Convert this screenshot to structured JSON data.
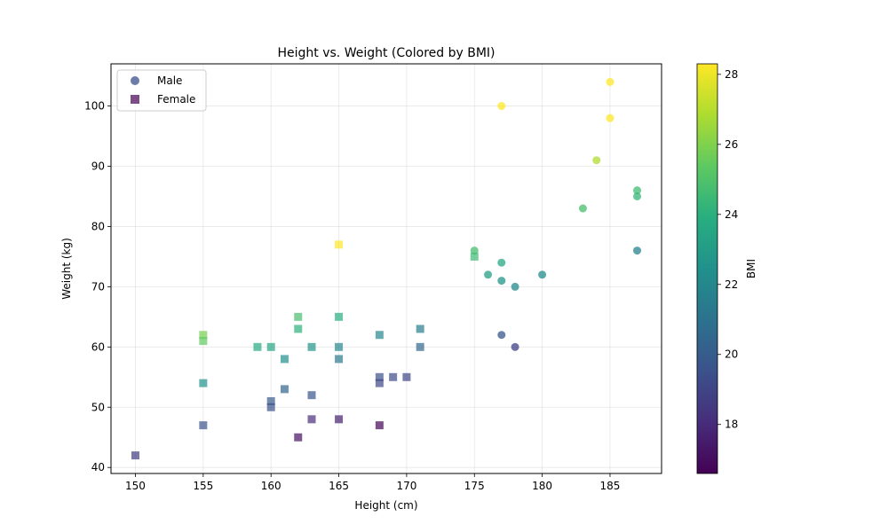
{
  "chart_data": {
    "type": "scatter",
    "title": "Height vs. Weight (Colored by BMI)",
    "xlabel": "Height (cm)",
    "ylabel": "Weight (kg)",
    "xlim": [
      148.2,
      188.8
    ],
    "ylim": [
      39.0,
      107.0
    ],
    "x_ticks": [
      150,
      155,
      160,
      165,
      170,
      175,
      180,
      185
    ],
    "y_ticks": [
      40,
      50,
      60,
      70,
      80,
      90,
      100
    ],
    "grid": true,
    "legend_position": "top-left",
    "colorbar": {
      "label": "BMI",
      "range": [
        16.6,
        28.3
      ],
      "ticks": [
        18,
        20,
        22,
        24,
        26,
        28
      ],
      "colormap": "viridis"
    },
    "series": [
      {
        "name": "Male",
        "marker": "circle",
        "points": [
          {
            "x": 177,
            "y": 100,
            "bmi": 31.9
          },
          {
            "x": 185,
            "y": 104,
            "bmi": 30.4
          },
          {
            "x": 185,
            "y": 98,
            "bmi": 28.6
          },
          {
            "x": 184,
            "y": 91,
            "bmi": 26.9
          },
          {
            "x": 183,
            "y": 83,
            "bmi": 24.8
          },
          {
            "x": 187,
            "y": 86,
            "bmi": 24.6
          },
          {
            "x": 187,
            "y": 85,
            "bmi": 24.3
          },
          {
            "x": 187,
            "y": 76,
            "bmi": 21.7
          },
          {
            "x": 175,
            "y": 76,
            "bmi": 24.8
          },
          {
            "x": 177,
            "y": 74,
            "bmi": 23.6
          },
          {
            "x": 176,
            "y": 72,
            "bmi": 23.2
          },
          {
            "x": 177,
            "y": 71,
            "bmi": 22.7
          },
          {
            "x": 178,
            "y": 70,
            "bmi": 22.1
          },
          {
            "x": 180,
            "y": 72,
            "bmi": 22.2
          },
          {
            "x": 177,
            "y": 62,
            "bmi": 19.8
          },
          {
            "x": 178,
            "y": 60,
            "bmi": 18.9
          }
        ]
      },
      {
        "name": "Female",
        "marker": "square",
        "points": [
          {
            "x": 165,
            "y": 77,
            "bmi": 28.3
          },
          {
            "x": 175,
            "y": 75,
            "bmi": 24.5
          },
          {
            "x": 162,
            "y": 65,
            "bmi": 24.8
          },
          {
            "x": 165,
            "y": 65,
            "bmi": 23.9
          },
          {
            "x": 162,
            "y": 63,
            "bmi": 24.0
          },
          {
            "x": 155,
            "y": 62,
            "bmi": 25.8
          },
          {
            "x": 155,
            "y": 61,
            "bmi": 25.4
          },
          {
            "x": 159,
            "y": 60,
            "bmi": 23.7
          },
          {
            "x": 160,
            "y": 60,
            "bmi": 23.4
          },
          {
            "x": 163,
            "y": 60,
            "bmi": 22.6
          },
          {
            "x": 165,
            "y": 60,
            "bmi": 22.0
          },
          {
            "x": 165,
            "y": 58,
            "bmi": 21.3
          },
          {
            "x": 161,
            "y": 58,
            "bmi": 22.4
          },
          {
            "x": 168,
            "y": 62,
            "bmi": 22.0
          },
          {
            "x": 171,
            "y": 63,
            "bmi": 21.5
          },
          {
            "x": 171,
            "y": 60,
            "bmi": 20.5
          },
          {
            "x": 155,
            "y": 54,
            "bmi": 22.5
          },
          {
            "x": 161,
            "y": 53,
            "bmi": 20.4
          },
          {
            "x": 163,
            "y": 52,
            "bmi": 19.6
          },
          {
            "x": 160,
            "y": 51,
            "bmi": 19.9
          },
          {
            "x": 160,
            "y": 50,
            "bmi": 19.5
          },
          {
            "x": 168,
            "y": 55,
            "bmi": 19.5
          },
          {
            "x": 168,
            "y": 54,
            "bmi": 19.1
          },
          {
            "x": 169,
            "y": 55,
            "bmi": 19.3
          },
          {
            "x": 170,
            "y": 55,
            "bmi": 19.0
          },
          {
            "x": 155,
            "y": 47,
            "bmi": 19.6
          },
          {
            "x": 163,
            "y": 48,
            "bmi": 18.1
          },
          {
            "x": 165,
            "y": 48,
            "bmi": 17.6
          },
          {
            "x": 162,
            "y": 45,
            "bmi": 17.1
          },
          {
            "x": 168,
            "y": 47,
            "bmi": 16.7
          },
          {
            "x": 150,
            "y": 42,
            "bmi": 18.7
          }
        ]
      }
    ]
  }
}
